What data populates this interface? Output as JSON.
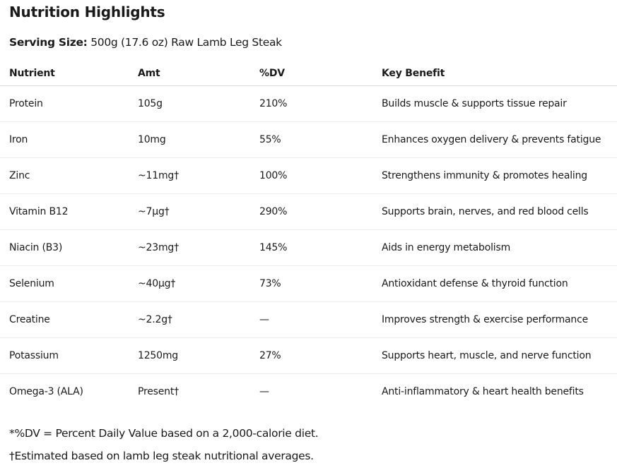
{
  "title": "Nutrition Highlights",
  "serving": {
    "label": "Serving Size:",
    "value": " 500g (17.6 oz) Raw Lamb Leg Steak"
  },
  "table": {
    "headers": [
      "Nutrient",
      "Amt",
      "%DV",
      "Key Benefit"
    ],
    "rows": [
      [
        "Protein",
        "105g",
        "210%",
        "Builds muscle & supports tissue repair"
      ],
      [
        "Iron",
        "10mg",
        "55%",
        "Enhances oxygen delivery & prevents fatigue"
      ],
      [
        "Zinc",
        "~11mg†",
        "100%",
        "Strengthens immunity & promotes healing"
      ],
      [
        "Vitamin B12",
        "~7µg†",
        "290%",
        "Supports brain, nerves, and red blood cells"
      ],
      [
        "Niacin (B3)",
        "~23mg†",
        "145%",
        "Aids in energy metabolism"
      ],
      [
        "Selenium",
        "~40µg†",
        "73%",
        "Antioxidant defense & thyroid function"
      ],
      [
        "Creatine",
        "~2.2g†",
        "—",
        "Improves strength & exercise performance"
      ],
      [
        "Potassium",
        "1250mg",
        "27%",
        "Supports heart, muscle, and nerve function"
      ],
      [
        "Omega-3 (ALA)",
        "Present†",
        "—",
        "Anti-inflammatory & heart health benefits"
      ]
    ]
  },
  "footnotes": [
    "*%DV = Percent Daily Value based on a 2,000-calorie diet.",
    "†Estimated based on lamb leg steak nutritional averages."
  ]
}
